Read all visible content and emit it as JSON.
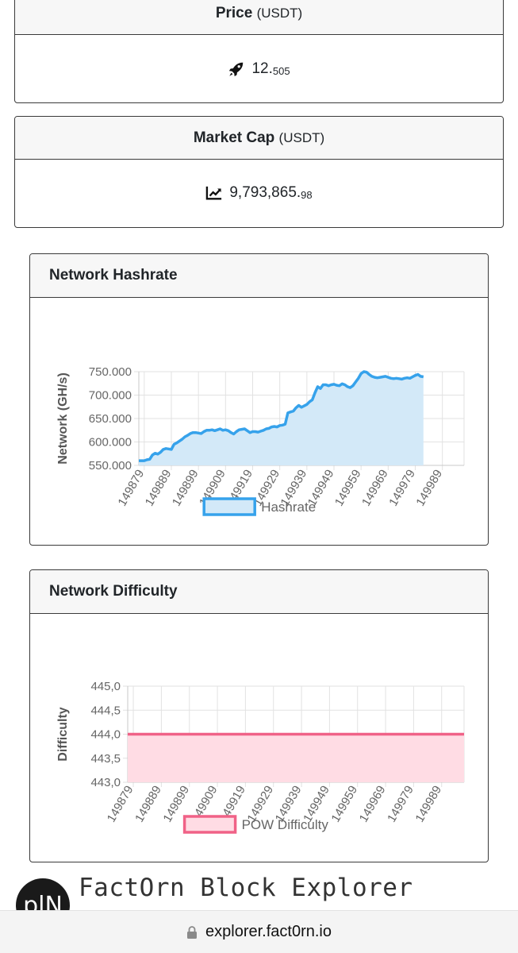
{
  "price": {
    "title": "Price",
    "unit": "(USDT)",
    "icon": "rocket-icon",
    "value_main": "12.",
    "value_frac": "505"
  },
  "market_cap": {
    "title": "Market Cap",
    "unit": "(USDT)",
    "icon": "chart-line-icon",
    "value_main": "9,793,865.",
    "value_frac": "98"
  },
  "hashrate_card": {
    "title": "Network Hashrate"
  },
  "difficulty_card": {
    "title": "Network Difficulty"
  },
  "chart_data": [
    {
      "type": "area",
      "ylabel": "Network (GH/s)",
      "ylim": [
        550,
        750
      ],
      "yticks": [
        "750.000",
        "700.000",
        "650.000",
        "600.000",
        "550.000"
      ],
      "xticks": [
        "149879",
        "149889",
        "149899",
        "149909",
        "149919",
        "149929",
        "149939",
        "149949",
        "149959",
        "149969",
        "149979",
        "149989"
      ],
      "x_start": 149877,
      "x_end": 149997,
      "color": "#36a2eb",
      "fill": "#d3e9f8",
      "series": [
        {
          "name": "Hashrate",
          "points": [
            [
              149877,
              560
            ],
            [
              149879,
              560
            ],
            [
              149880,
              562
            ],
            [
              149881,
              563
            ],
            [
              149882,
              572
            ],
            [
              149883,
              576
            ],
            [
              149884,
              574
            ],
            [
              149885,
              578
            ],
            [
              149886,
              584
            ],
            [
              149887,
              586
            ],
            [
              149888,
              585
            ],
            [
              149889,
              584
            ],
            [
              149890,
              595
            ],
            [
              149891,
              598
            ],
            [
              149892,
              602
            ],
            [
              149893,
              606
            ],
            [
              149894,
              611
            ],
            [
              149895,
              614
            ],
            [
              149896,
              618
            ],
            [
              149897,
              620
            ],
            [
              149898,
              620
            ],
            [
              149899,
              619
            ],
            [
              149900,
              618
            ],
            [
              149901,
              622
            ],
            [
              149902,
              625
            ],
            [
              149903,
              625
            ],
            [
              149904,
              626
            ],
            [
              149905,
              624
            ],
            [
              149906,
              626
            ],
            [
              149907,
              628
            ],
            [
              149908,
              625
            ],
            [
              149909,
              626
            ],
            [
              149910,
              624
            ],
            [
              149911,
              620
            ],
            [
              149912,
              617
            ],
            [
              149913,
              622
            ],
            [
              149914,
              626
            ],
            [
              149915,
              627
            ],
            [
              149916,
              628
            ],
            [
              149917,
              624
            ],
            [
              149918,
              620
            ],
            [
              149919,
              622
            ],
            [
              149920,
              622
            ],
            [
              149921,
              621
            ],
            [
              149922,
              623
            ],
            [
              149923,
              625
            ],
            [
              149924,
              628
            ],
            [
              149925,
              629
            ],
            [
              149926,
              632
            ],
            [
              149927,
              633
            ],
            [
              149928,
              632
            ],
            [
              149929,
              635
            ],
            [
              149930,
              636
            ],
            [
              149931,
              638
            ],
            [
              149932,
              662
            ],
            [
              149933,
              664
            ],
            [
              149934,
              666
            ],
            [
              149935,
              673
            ],
            [
              149936,
              678
            ],
            [
              149937,
              674
            ],
            [
              149938,
              677
            ],
            [
              149939,
              680
            ],
            [
              149940,
              686
            ],
            [
              149941,
              690
            ],
            [
              149942,
              705
            ],
            [
              149943,
              718
            ],
            [
              149944,
              714
            ],
            [
              149945,
              722
            ],
            [
              149946,
              722
            ],
            [
              149947,
              720
            ],
            [
              149948,
              722
            ],
            [
              149949,
              723
            ],
            [
              149950,
              721
            ],
            [
              149951,
              720
            ],
            [
              149952,
              724
            ],
            [
              149953,
              722
            ],
            [
              149954,
              718
            ],
            [
              149955,
              716
            ],
            [
              149956,
              720
            ],
            [
              149957,
              728
            ],
            [
              149958,
              736
            ],
            [
              149959,
              746
            ],
            [
              149960,
              750
            ],
            [
              149961,
              749
            ],
            [
              149962,
              744
            ],
            [
              149963,
              740
            ],
            [
              149964,
              738
            ],
            [
              149965,
              737
            ],
            [
              149966,
              738
            ],
            [
              149967,
              739
            ],
            [
              149968,
              740
            ],
            [
              149969,
              738
            ],
            [
              149970,
              736
            ],
            [
              149971,
              735
            ],
            [
              149972,
              736
            ],
            [
              149973,
              735
            ],
            [
              149974,
              734
            ],
            [
              149975,
              736
            ],
            [
              149976,
              737
            ],
            [
              149977,
              736
            ],
            [
              149978,
              739
            ],
            [
              149979,
              742
            ],
            [
              149980,
              744
            ],
            [
              149981,
              740
            ],
            [
              149982,
              739
            ]
          ]
        }
      ]
    },
    {
      "type": "area",
      "ylabel": "Difficulty",
      "ylim": [
        443,
        445
      ],
      "yticks": [
        "445,0",
        "444,5",
        "444,0",
        "443,5",
        "443,0"
      ],
      "xticks": [
        "149879",
        "149889",
        "149899",
        "149909",
        "149919",
        "149929",
        "149939",
        "149949",
        "149959",
        "149969",
        "149979",
        "149989"
      ],
      "x_start": 149877,
      "x_end": 149997,
      "color": "#f06287",
      "fill": "#ffdce4",
      "series": [
        {
          "name": "POW Difficulty",
          "points": [
            [
              149877,
              444
            ],
            [
              149997,
              444
            ]
          ]
        }
      ]
    }
  ],
  "footer": {
    "brand": "FactOrn Block Explorer",
    "logo_text": "plN",
    "url": "explorer.fact0rn.io"
  }
}
